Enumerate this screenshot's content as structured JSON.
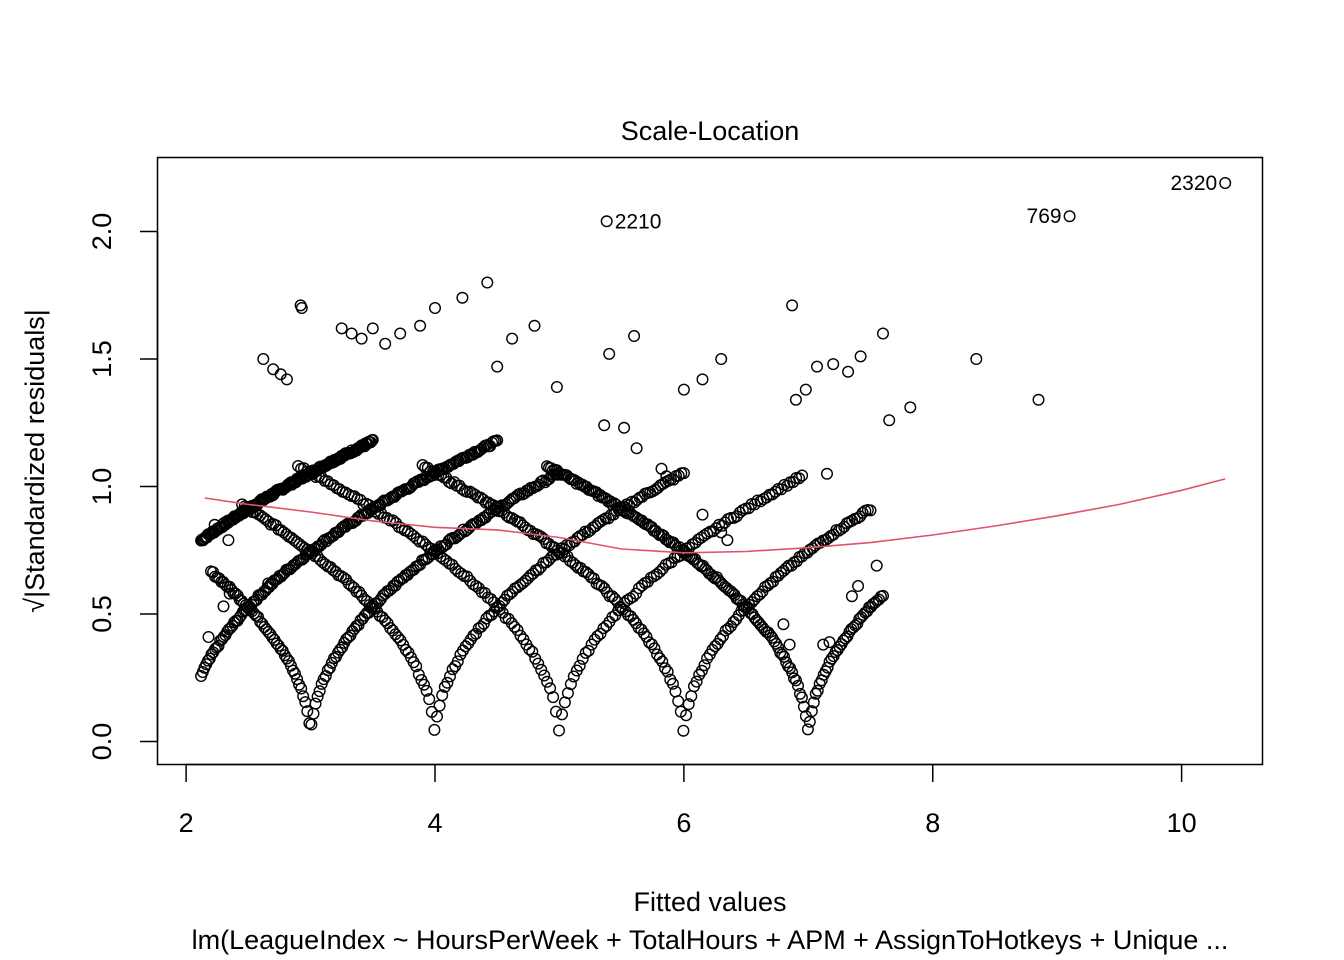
{
  "chart_data": {
    "type": "scatter",
    "title": "Scale-Location",
    "xlabel": "Fitted values",
    "ylabel": "√|Standardized residuals|",
    "subtitle": "lm(LeagueIndex ~ HoursPerWeek + TotalHours + APM + AssignToHotkeys + Unique ...",
    "xlim": [
      1.77,
      10.65
    ],
    "ylim": [
      -0.09,
      2.29
    ],
    "x_ticks": [
      2,
      4,
      6,
      8,
      10
    ],
    "x_tick_labels": [
      "2",
      "4",
      "6",
      "8",
      "10"
    ],
    "y_ticks": [
      0.0,
      0.5,
      1.0,
      1.5,
      2.0
    ],
    "y_tick_labels": [
      "0.0",
      "0.5",
      "1.0",
      "1.5",
      "2.0"
    ],
    "grid": false,
    "point_color": "#000000",
    "smooth_color": "#DF536B",
    "structure": {
      "league_levels": [
        1,
        2,
        3,
        4,
        5,
        6,
        7
      ],
      "arcs": [
        {
          "level": 1,
          "x_range": [
            2.12,
            3.5
          ]
        },
        {
          "level": 2,
          "x_range": [
            2.12,
            4.5
          ]
        },
        {
          "level": 3,
          "x_range": [
            2.2,
            5.0
          ]
        },
        {
          "level": 4,
          "x_range": [
            2.45,
            6.0
          ]
        },
        {
          "level": 5,
          "x_range": [
            2.9,
            6.95
          ]
        },
        {
          "level": 6,
          "x_range": [
            3.9,
            7.5
          ]
        },
        {
          "level": 7,
          "x_range": [
            4.9,
            7.6
          ]
        }
      ]
    },
    "extra_points": [
      [
        2.18,
        0.41
      ],
      [
        2.23,
        0.85
      ],
      [
        2.3,
        0.53
      ],
      [
        2.34,
        0.79
      ],
      [
        2.35,
        0.58
      ],
      [
        2.62,
        1.5
      ],
      [
        2.66,
        0.62
      ],
      [
        2.7,
        1.46
      ],
      [
        2.76,
        1.44
      ],
      [
        2.81,
        1.42
      ],
      [
        2.92,
        1.71
      ],
      [
        2.93,
        1.7
      ],
      [
        3.25,
        1.62
      ],
      [
        3.33,
        1.6
      ],
      [
        3.41,
        1.58
      ],
      [
        3.5,
        1.62
      ],
      [
        3.6,
        1.56
      ],
      [
        3.72,
        1.6
      ],
      [
        3.88,
        1.63
      ],
      [
        4.0,
        1.7
      ],
      [
        4.22,
        1.74
      ],
      [
        4.42,
        1.8
      ],
      [
        4.5,
        1.47
      ],
      [
        4.62,
        1.58
      ],
      [
        4.8,
        1.63
      ],
      [
        4.98,
        1.39
      ],
      [
        5.36,
        1.24
      ],
      [
        5.4,
        1.52
      ],
      [
        5.52,
        1.23
      ],
      [
        5.6,
        1.59
      ],
      [
        5.62,
        1.15
      ],
      [
        5.82,
        1.07
      ],
      [
        5.86,
        1.04
      ],
      [
        6.0,
        1.38
      ],
      [
        6.15,
        1.42
      ],
      [
        6.15,
        0.89
      ],
      [
        6.3,
        1.5
      ],
      [
        6.3,
        0.82
      ],
      [
        6.35,
        0.79
      ],
      [
        6.8,
        0.46
      ],
      [
        6.85,
        0.38
      ],
      [
        6.87,
        1.71
      ],
      [
        6.9,
        1.34
      ],
      [
        6.98,
        1.38
      ],
      [
        7.07,
        1.47
      ],
      [
        7.15,
        1.05
      ],
      [
        7.12,
        0.38
      ],
      [
        7.17,
        0.39
      ],
      [
        7.2,
        1.48
      ],
      [
        7.32,
        1.45
      ],
      [
        7.35,
        0.57
      ],
      [
        7.4,
        0.61
      ],
      [
        7.42,
        1.51
      ],
      [
        7.55,
        0.69
      ],
      [
        7.6,
        1.6
      ],
      [
        7.65,
        1.26
      ],
      [
        7.82,
        1.31
      ],
      [
        8.35,
        1.5
      ],
      [
        8.85,
        1.34
      ]
    ],
    "labeled_points": [
      {
        "label": "2210",
        "x": 5.38,
        "y": 2.04
      },
      {
        "label": "769",
        "x": 9.1,
        "y": 2.06
      },
      {
        "label": "2320",
        "x": 10.35,
        "y": 2.19
      }
    ],
    "smooth_line": {
      "x": [
        2.15,
        2.5,
        3.0,
        3.5,
        4.0,
        4.5,
        5.0,
        5.5,
        6.0,
        6.5,
        7.0,
        7.5,
        8.0,
        8.5,
        9.0,
        9.5,
        10.0,
        10.35
      ],
      "y": [
        0.955,
        0.93,
        0.9,
        0.865,
        0.84,
        0.83,
        0.8,
        0.755,
        0.74,
        0.745,
        0.76,
        0.78,
        0.81,
        0.845,
        0.885,
        0.93,
        0.985,
        1.03
      ]
    }
  }
}
